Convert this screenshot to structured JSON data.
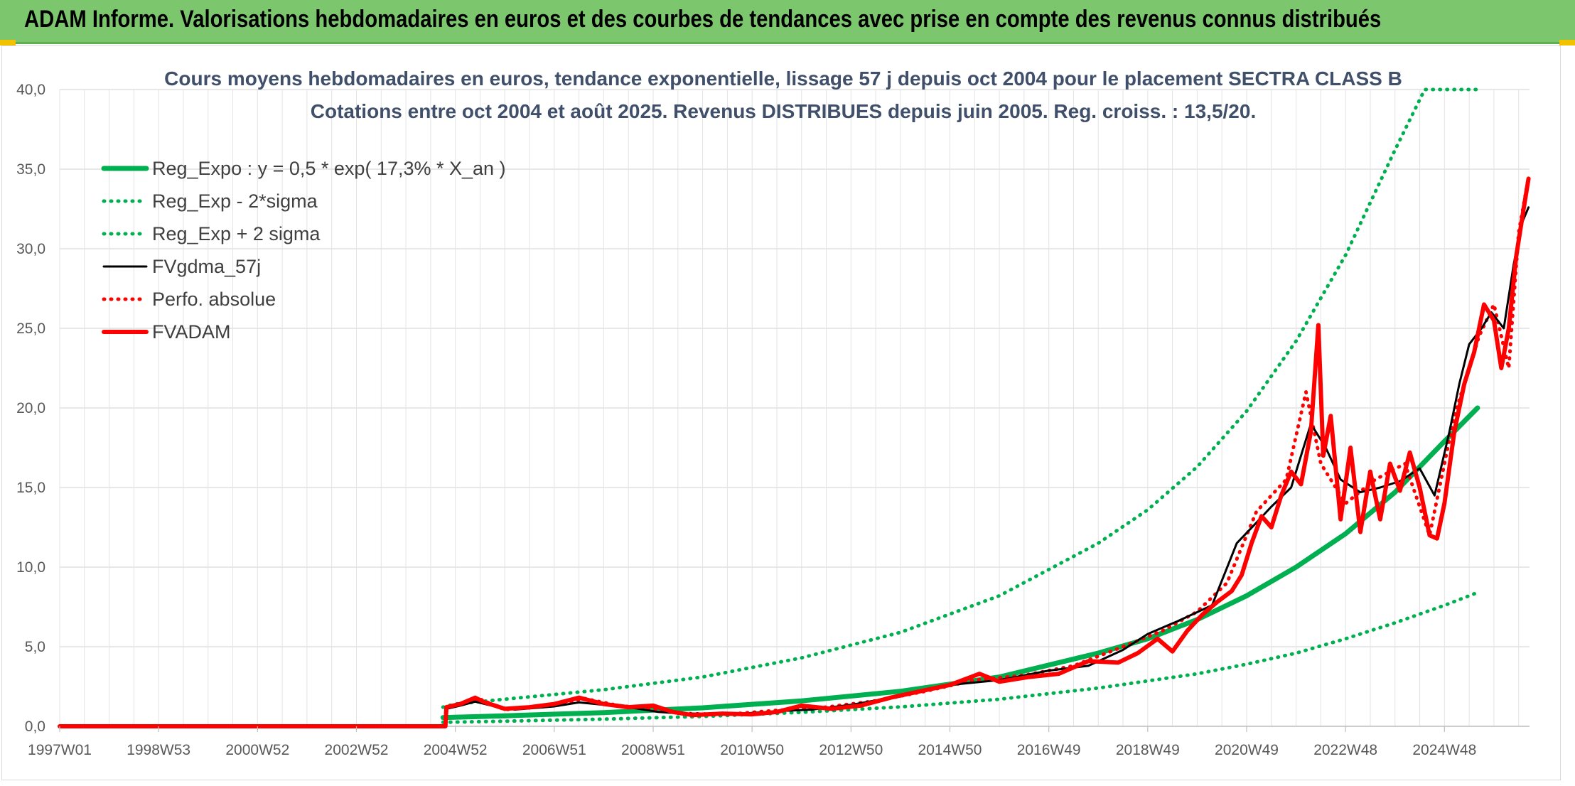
{
  "header": {
    "title": "ADAM Informe. Valorisations hebdomadaires en euros et des courbes de tendances avec prise en compte des revenus connus distribués",
    "background_color": "#7cc66e"
  },
  "chart_data": {
    "type": "line",
    "title": "Cours moyens hebdomadaires en euros, tendance exponentielle, lissage 57 j depuis oct 2004 pour le placement SECTRA CLASS B",
    "subtitle": "Cotations entre oct 2004 et août 2025. Revenus DISTRIBUES depuis juin 2005. Reg. croiss. : 13,5/20.",
    "xlabel": "",
    "ylabel": "",
    "ylim": [
      0,
      40
    ],
    "yticks": [
      "0,0",
      "5,0",
      "10,0",
      "15,0",
      "20,0",
      "25,0",
      "30,0",
      "35,0",
      "40,0"
    ],
    "xlim": [
      1997.0,
      2025.67
    ],
    "xticks": [
      {
        "label": "1997W01",
        "x": 1997.0
      },
      {
        "label": "1998W53",
        "x": 1999.0
      },
      {
        "label": "2000W52",
        "x": 2001.0
      },
      {
        "label": "2002W52",
        "x": 2003.0
      },
      {
        "label": "2004W52",
        "x": 2005.0
      },
      {
        "label": "2006W51",
        "x": 2007.0
      },
      {
        "label": "2008W51",
        "x": 2009.0
      },
      {
        "label": "2010W50",
        "x": 2011.0
      },
      {
        "label": "2012W50",
        "x": 2013.0
      },
      {
        "label": "2014W50",
        "x": 2015.0
      },
      {
        "label": "2016W49",
        "x": 2017.0
      },
      {
        "label": "2018W49",
        "x": 2019.0
      },
      {
        "label": "2020W49",
        "x": 2021.0
      },
      {
        "label": "2022W48",
        "x": 2023.0
      },
      {
        "label": "2024W48",
        "x": 2025.0
      }
    ],
    "grid": true,
    "legend_position": "top-left",
    "series": [
      {
        "name": "Reg_Expo : y = 0,5 * exp( 17,3% *  X_an )",
        "color": "#00b050",
        "style": "solid-thick",
        "points": [
          [
            2004.75,
            0.55
          ],
          [
            2006,
            0.66
          ],
          [
            2008,
            0.86
          ],
          [
            2010,
            1.16
          ],
          [
            2012,
            1.6
          ],
          [
            2014,
            2.2
          ],
          [
            2016,
            3.1
          ],
          [
            2018,
            4.6
          ],
          [
            2019,
            5.5
          ],
          [
            2020,
            6.7
          ],
          [
            2021,
            8.2
          ],
          [
            2022,
            10.0
          ],
          [
            2023,
            12.1
          ],
          [
            2024,
            14.7
          ],
          [
            2025,
            17.9
          ],
          [
            2025.67,
            20.0
          ]
        ]
      },
      {
        "name": "Reg_Exp - 2*sigma",
        "color": "#00b050",
        "style": "dotted",
        "points": [
          [
            2004.75,
            0.25
          ],
          [
            2006,
            0.32
          ],
          [
            2008,
            0.45
          ],
          [
            2010,
            0.62
          ],
          [
            2012,
            0.88
          ],
          [
            2014,
            1.22
          ],
          [
            2016,
            1.7
          ],
          [
            2018,
            2.4
          ],
          [
            2020,
            3.3
          ],
          [
            2021,
            3.9
          ],
          [
            2022,
            4.6
          ],
          [
            2023,
            5.5
          ],
          [
            2024,
            6.5
          ],
          [
            2025,
            7.6
          ],
          [
            2025.67,
            8.4
          ]
        ]
      },
      {
        "name": "Reg_Exp + 2 sigma",
        "color": "#00b050",
        "style": "dotted",
        "points": [
          [
            2004.75,
            1.2
          ],
          [
            2005,
            1.4
          ],
          [
            2006,
            1.7
          ],
          [
            2008,
            2.3
          ],
          [
            2010,
            3.1
          ],
          [
            2012,
            4.3
          ],
          [
            2014,
            5.9
          ],
          [
            2016,
            8.2
          ],
          [
            2018,
            11.5
          ],
          [
            2019,
            13.6
          ],
          [
            2020,
            16.3
          ],
          [
            2021,
            19.8
          ],
          [
            2022,
            24.2
          ],
          [
            2023,
            29.6
          ],
          [
            2024,
            36.2
          ],
          [
            2024.6,
            40.0
          ],
          [
            2025.67,
            40.0
          ]
        ]
      },
      {
        "name": "FVgdma_57j",
        "color": "#000000",
        "style": "solid",
        "points": [
          [
            1997.0,
            0
          ],
          [
            2004.8,
            0
          ],
          [
            2004.82,
            1.1
          ],
          [
            2005.1,
            1.3
          ],
          [
            2005.4,
            1.55
          ],
          [
            2005.8,
            1.25
          ],
          [
            2006.2,
            1.05
          ],
          [
            2007,
            1.25
          ],
          [
            2007.5,
            1.5
          ],
          [
            2008,
            1.35
          ],
          [
            2008.6,
            1.15
          ],
          [
            2009.1,
            0.9
          ],
          [
            2009.6,
            0.8
          ],
          [
            2010.2,
            0.8
          ],
          [
            2010.8,
            0.8
          ],
          [
            2011.5,
            0.95
          ],
          [
            2012.2,
            1.05
          ],
          [
            2013,
            1.35
          ],
          [
            2014,
            1.9
          ],
          [
            2015,
            2.6
          ],
          [
            2016,
            2.9
          ],
          [
            2017,
            3.5
          ],
          [
            2017.8,
            3.8
          ],
          [
            2018.5,
            4.8
          ],
          [
            2019,
            5.8
          ],
          [
            2019.6,
            6.6
          ],
          [
            2020.3,
            7.6
          ],
          [
            2020.8,
            11.5
          ],
          [
            2021.2,
            12.8
          ],
          [
            2021.5,
            13.8
          ],
          [
            2021.9,
            15.0
          ],
          [
            2022.3,
            19.0
          ],
          [
            2022.6,
            17.5
          ],
          [
            2022.9,
            15.5
          ],
          [
            2023.3,
            14.7
          ],
          [
            2023.7,
            15.0
          ],
          [
            2024.1,
            15.4
          ],
          [
            2024.5,
            16.2
          ],
          [
            2024.8,
            14.5
          ],
          [
            2025.1,
            18.5
          ],
          [
            2025.3,
            21.5
          ],
          [
            2025.5,
            24.0
          ],
          [
            2025.75,
            25.0
          ],
          [
            2025.95,
            26.0
          ],
          [
            2026.2,
            25.0
          ],
          [
            2026.4,
            29.0
          ],
          [
            2026.55,
            31.5
          ],
          [
            2026.7,
            32.6
          ]
        ]
      },
      {
        "name": "Perfo. absolue",
        "color": "#ff0000",
        "style": "dotted",
        "points": [
          [
            1997.0,
            0
          ],
          [
            2004.8,
            0
          ],
          [
            2004.82,
            1.2
          ],
          [
            2005.2,
            1.5
          ],
          [
            2005.5,
            1.7
          ],
          [
            2006,
            1.05
          ],
          [
            2007,
            1.3
          ],
          [
            2007.6,
            1.75
          ],
          [
            2008.3,
            1.3
          ],
          [
            2009,
            1.1
          ],
          [
            2009.6,
            0.8
          ],
          [
            2010.5,
            0.75
          ],
          [
            2011.5,
            1.0
          ],
          [
            2012.5,
            1.2
          ],
          [
            2013.5,
            1.6
          ],
          [
            2014.5,
            2.2
          ],
          [
            2015.5,
            2.9
          ],
          [
            2016.5,
            3.2
          ],
          [
            2017.5,
            3.8
          ],
          [
            2018.5,
            5.0
          ],
          [
            2019.3,
            6.0
          ],
          [
            2020,
            7.2
          ],
          [
            2020.6,
            9.0
          ],
          [
            2021.2,
            13.5
          ],
          [
            2021.8,
            15.5
          ],
          [
            2022.2,
            21.0
          ],
          [
            2022.5,
            16.5
          ],
          [
            2023,
            14.0
          ],
          [
            2023.6,
            15.5
          ],
          [
            2024.2,
            16.5
          ],
          [
            2024.7,
            12.0
          ],
          [
            2025.2,
            19.5
          ],
          [
            2025.7,
            24.5
          ],
          [
            2026.0,
            26.5
          ],
          [
            2026.3,
            22.5
          ],
          [
            2026.5,
            31.0
          ],
          [
            2026.7,
            34.5
          ]
        ]
      },
      {
        "name": "FVADAM",
        "color": "#ff0000",
        "style": "solid-thick",
        "points": [
          [
            1997.0,
            0
          ],
          [
            2004.8,
            0
          ],
          [
            2004.82,
            1.2
          ],
          [
            2005.1,
            1.4
          ],
          [
            2005.4,
            1.8
          ],
          [
            2005.6,
            1.5
          ],
          [
            2006.0,
            1.1
          ],
          [
            2006.5,
            1.2
          ],
          [
            2007.0,
            1.4
          ],
          [
            2007.5,
            1.8
          ],
          [
            2008.0,
            1.4
          ],
          [
            2008.5,
            1.2
          ],
          [
            2009.0,
            1.3
          ],
          [
            2009.4,
            0.9
          ],
          [
            2009.8,
            0.7
          ],
          [
            2010.4,
            0.8
          ],
          [
            2011.0,
            0.75
          ],
          [
            2011.5,
            0.9
          ],
          [
            2012.0,
            1.3
          ],
          [
            2012.6,
            1.1
          ],
          [
            2013.2,
            1.3
          ],
          [
            2013.8,
            1.8
          ],
          [
            2014.4,
            2.2
          ],
          [
            2015.0,
            2.6
          ],
          [
            2015.6,
            3.3
          ],
          [
            2016.0,
            2.8
          ],
          [
            2016.6,
            3.1
          ],
          [
            2017.2,
            3.3
          ],
          [
            2017.8,
            4.1
          ],
          [
            2018.4,
            4.0
          ],
          [
            2018.8,
            4.6
          ],
          [
            2019.2,
            5.5
          ],
          [
            2019.5,
            4.7
          ],
          [
            2019.8,
            6.0
          ],
          [
            2020.1,
            7.0
          ],
          [
            2020.4,
            7.8
          ],
          [
            2020.7,
            8.5
          ],
          [
            2020.9,
            9.5
          ],
          [
            2021.1,
            11.5
          ],
          [
            2021.3,
            13.2
          ],
          [
            2021.5,
            12.5
          ],
          [
            2021.7,
            14.5
          ],
          [
            2021.9,
            16.0
          ],
          [
            2022.1,
            15.2
          ],
          [
            2022.3,
            18.5
          ],
          [
            2022.45,
            25.2
          ],
          [
            2022.55,
            17.0
          ],
          [
            2022.7,
            19.5
          ],
          [
            2022.9,
            13.0
          ],
          [
            2023.1,
            17.5
          ],
          [
            2023.3,
            12.2
          ],
          [
            2023.5,
            16.0
          ],
          [
            2023.7,
            13.0
          ],
          [
            2023.9,
            16.5
          ],
          [
            2024.1,
            14.8
          ],
          [
            2024.3,
            17.2
          ],
          [
            2024.5,
            15.0
          ],
          [
            2024.7,
            12.0
          ],
          [
            2024.85,
            11.8
          ],
          [
            2025.0,
            14.0
          ],
          [
            2025.2,
            18.5
          ],
          [
            2025.4,
            21.5
          ],
          [
            2025.6,
            23.5
          ],
          [
            2025.8,
            26.5
          ],
          [
            2026.0,
            25.5
          ],
          [
            2026.15,
            22.5
          ],
          [
            2026.3,
            25.0
          ],
          [
            2026.45,
            29.5
          ],
          [
            2026.6,
            32.5
          ],
          [
            2026.7,
            34.4
          ]
        ]
      }
    ]
  }
}
